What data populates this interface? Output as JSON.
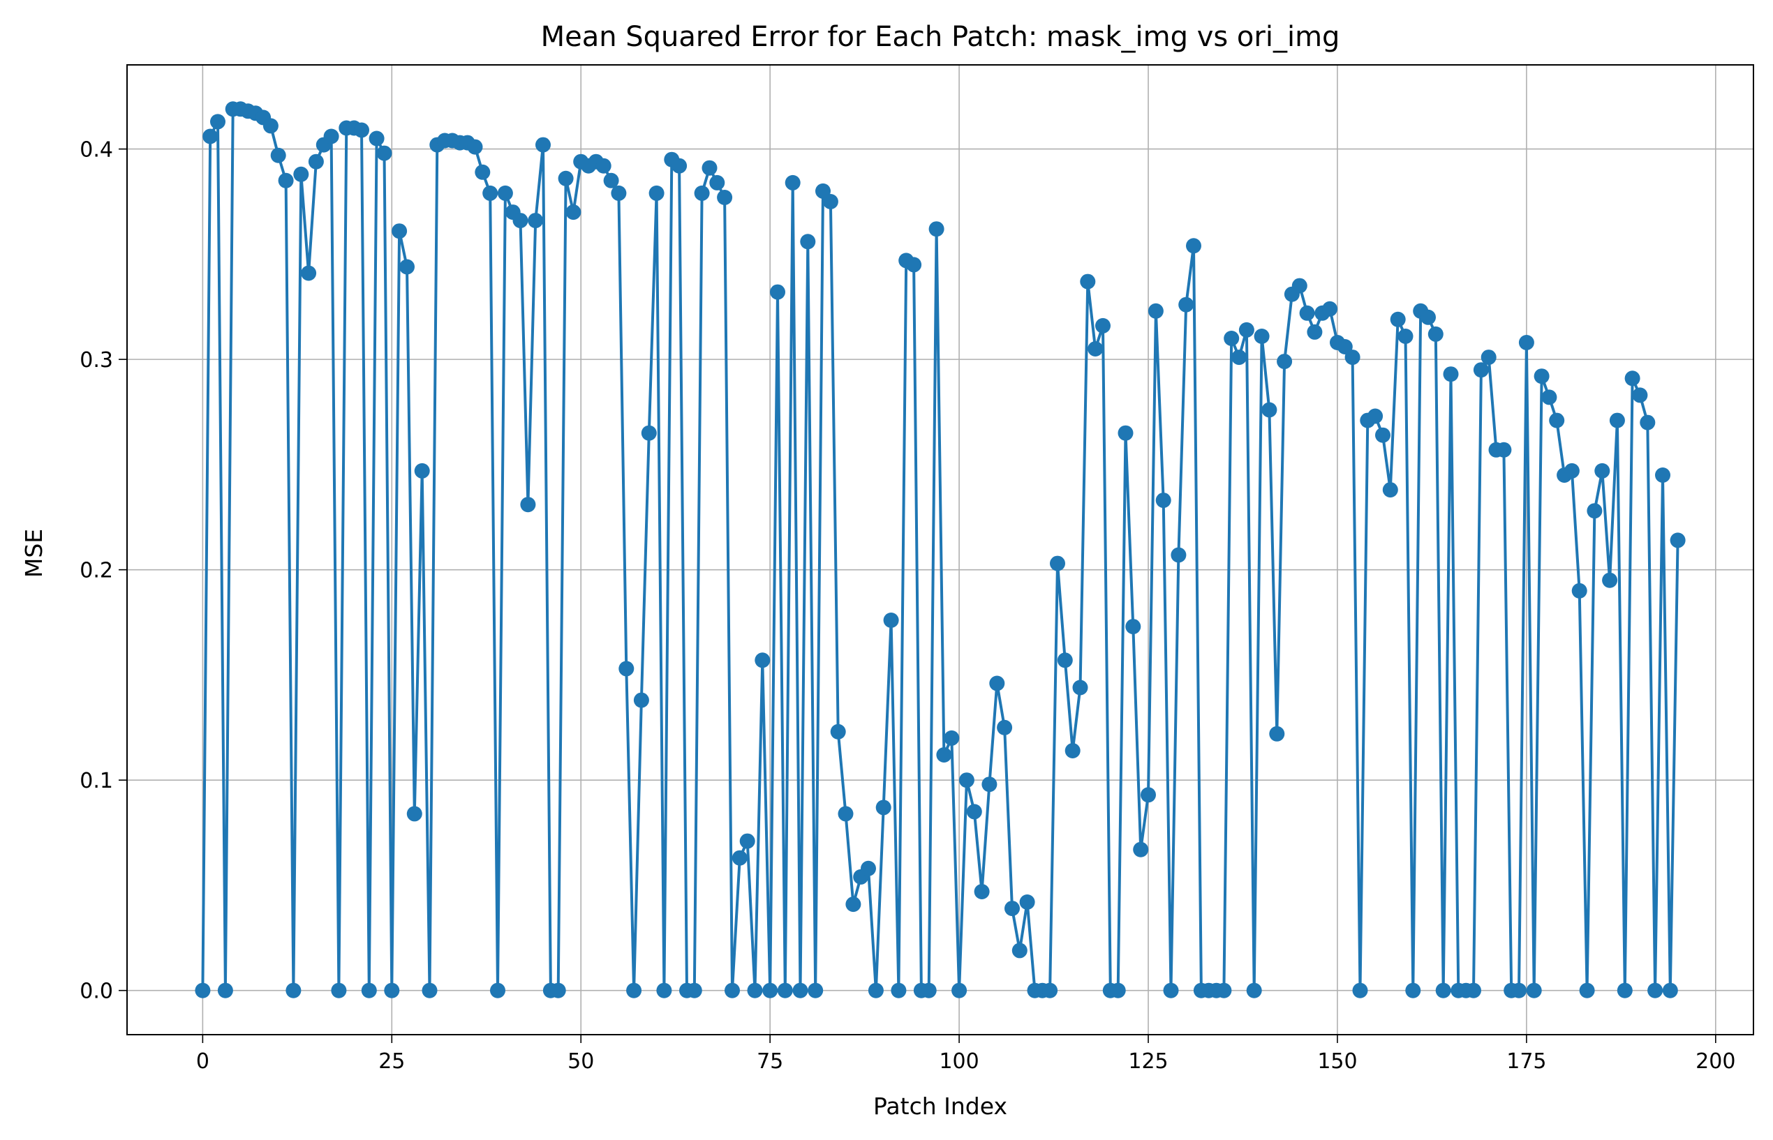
{
  "chart_data": {
    "type": "line",
    "title": "Mean Squared Error for Each Patch: mask_img vs ori_img",
    "xlabel": "Patch Index",
    "ylabel": "MSE",
    "xlim": [
      -10,
      205
    ],
    "ylim": [
      -0.021,
      0.44
    ],
    "xticks": [
      0,
      25,
      50,
      75,
      100,
      125,
      150,
      175,
      200
    ],
    "xtick_labels": [
      "0",
      "25",
      "50",
      "75",
      "100",
      "125",
      "150",
      "175",
      "200"
    ],
    "yticks": [
      0.0,
      0.1,
      0.2,
      0.3,
      0.4
    ],
    "ytick_labels": [
      "0.0",
      "0.1",
      "0.2",
      "0.3",
      "0.4"
    ],
    "grid": true,
    "color": "#1f77b4",
    "marker": "circle",
    "series": [
      {
        "x": [
          0,
          1,
          2,
          3,
          4,
          5,
          6,
          7,
          8,
          9,
          10,
          11,
          12,
          13,
          14,
          15,
          16,
          17,
          18,
          19,
          20,
          21,
          22,
          23,
          24,
          25,
          26,
          27,
          28,
          29,
          30,
          31,
          32,
          33,
          34,
          35,
          36,
          37,
          38,
          39,
          40,
          41,
          42,
          43,
          44,
          45,
          46,
          47,
          48,
          49,
          50,
          51,
          52,
          53,
          54,
          55,
          56,
          57,
          58,
          59,
          60,
          61,
          62,
          63,
          64,
          65,
          66,
          67,
          68,
          69,
          70,
          71,
          72,
          73,
          74,
          75,
          76,
          77,
          78,
          79,
          80,
          81,
          82,
          83,
          84,
          85,
          86,
          87,
          88,
          89,
          90,
          91,
          92,
          93,
          94,
          95,
          96,
          97,
          98,
          99,
          100,
          101,
          102,
          103,
          104,
          105,
          106,
          107,
          108,
          109,
          110,
          111,
          112,
          113,
          114,
          115,
          116,
          117,
          118,
          119,
          120,
          121,
          122,
          123,
          124,
          125,
          126,
          127,
          128,
          129,
          130,
          131,
          132,
          133,
          134,
          135,
          136,
          137,
          138,
          139,
          140,
          141,
          142,
          143,
          144,
          145,
          146,
          147,
          148,
          149,
          150,
          151,
          152,
          153,
          154,
          155,
          156,
          157,
          158,
          159,
          160,
          161,
          162,
          163,
          164,
          165,
          166,
          167,
          168,
          169,
          170,
          171,
          172,
          173,
          174,
          175,
          176,
          177,
          178,
          179,
          180,
          181,
          182,
          183,
          184,
          185,
          186,
          187,
          188,
          189,
          190,
          191,
          192,
          193,
          194,
          195
        ],
        "y": [
          0,
          0.406,
          0.413,
          0,
          0.419,
          0.419,
          0.418,
          0.417,
          0.415,
          0.411,
          0.397,
          0.385,
          0,
          0.388,
          0.341,
          0.394,
          0.402,
          0.406,
          0,
          0.41,
          0.41,
          0.409,
          0,
          0.405,
          0.398,
          0,
          0.361,
          0.344,
          0.084,
          0.247,
          0,
          0.402,
          0.404,
          0.404,
          0.403,
          0.403,
          0.401,
          0.389,
          0.379,
          0,
          0.379,
          0.37,
          0.366,
          0.231,
          0.366,
          0.402,
          0,
          0,
          0.386,
          0.37,
          0.394,
          0.392,
          0.394,
          0.392,
          0.385,
          0.379,
          0.153,
          0,
          0.138,
          0.265,
          0.379,
          0,
          0.395,
          0.392,
          0,
          0,
          0.379,
          0.391,
          0.384,
          0.377,
          0,
          0.063,
          0.071,
          0,
          0.157,
          0,
          0.332,
          0,
          0.384,
          0,
          0.356,
          0,
          0.38,
          0.375,
          0.123,
          0.084,
          0.041,
          0.054,
          0.058,
          0,
          0.087,
          0.176,
          0,
          0.347,
          0.345,
          0,
          0,
          0.362,
          0.112,
          0.12,
          0,
          0.1,
          0.085,
          0.047,
          0.098,
          0.146,
          0.125,
          0.039,
          0.019,
          0.042,
          0,
          0,
          0,
          0.203,
          0.157,
          0.114,
          0.144,
          0.337,
          0.305,
          0.316,
          0,
          0,
          0.265,
          0.173,
          0.067,
          0.093,
          0.323,
          0.233,
          0,
          0.207,
          0.326,
          0.354,
          0,
          0,
          0,
          0,
          0.31,
          0.301,
          0.314,
          0,
          0.311,
          0.276,
          0.122,
          0.299,
          0.331,
          0.335,
          0.322,
          0.313,
          0.322,
          0.324,
          0.308,
          0.306,
          0.301,
          0,
          0.271,
          0.273,
          0.264,
          0.238,
          0.319,
          0.311,
          0,
          0.323,
          0.32,
          0.312,
          0,
          0.293,
          0,
          0,
          0,
          0.295,
          0.301,
          0.257,
          0.257,
          0,
          0,
          0.308,
          0,
          0.292,
          0.282,
          0.271,
          0.245,
          0.247,
          0.19,
          0,
          0.228,
          0.247,
          0.195,
          0.271,
          0,
          0.291,
          0.283,
          0.27,
          0,
          0.245,
          0,
          0.214
        ]
      }
    ]
  }
}
